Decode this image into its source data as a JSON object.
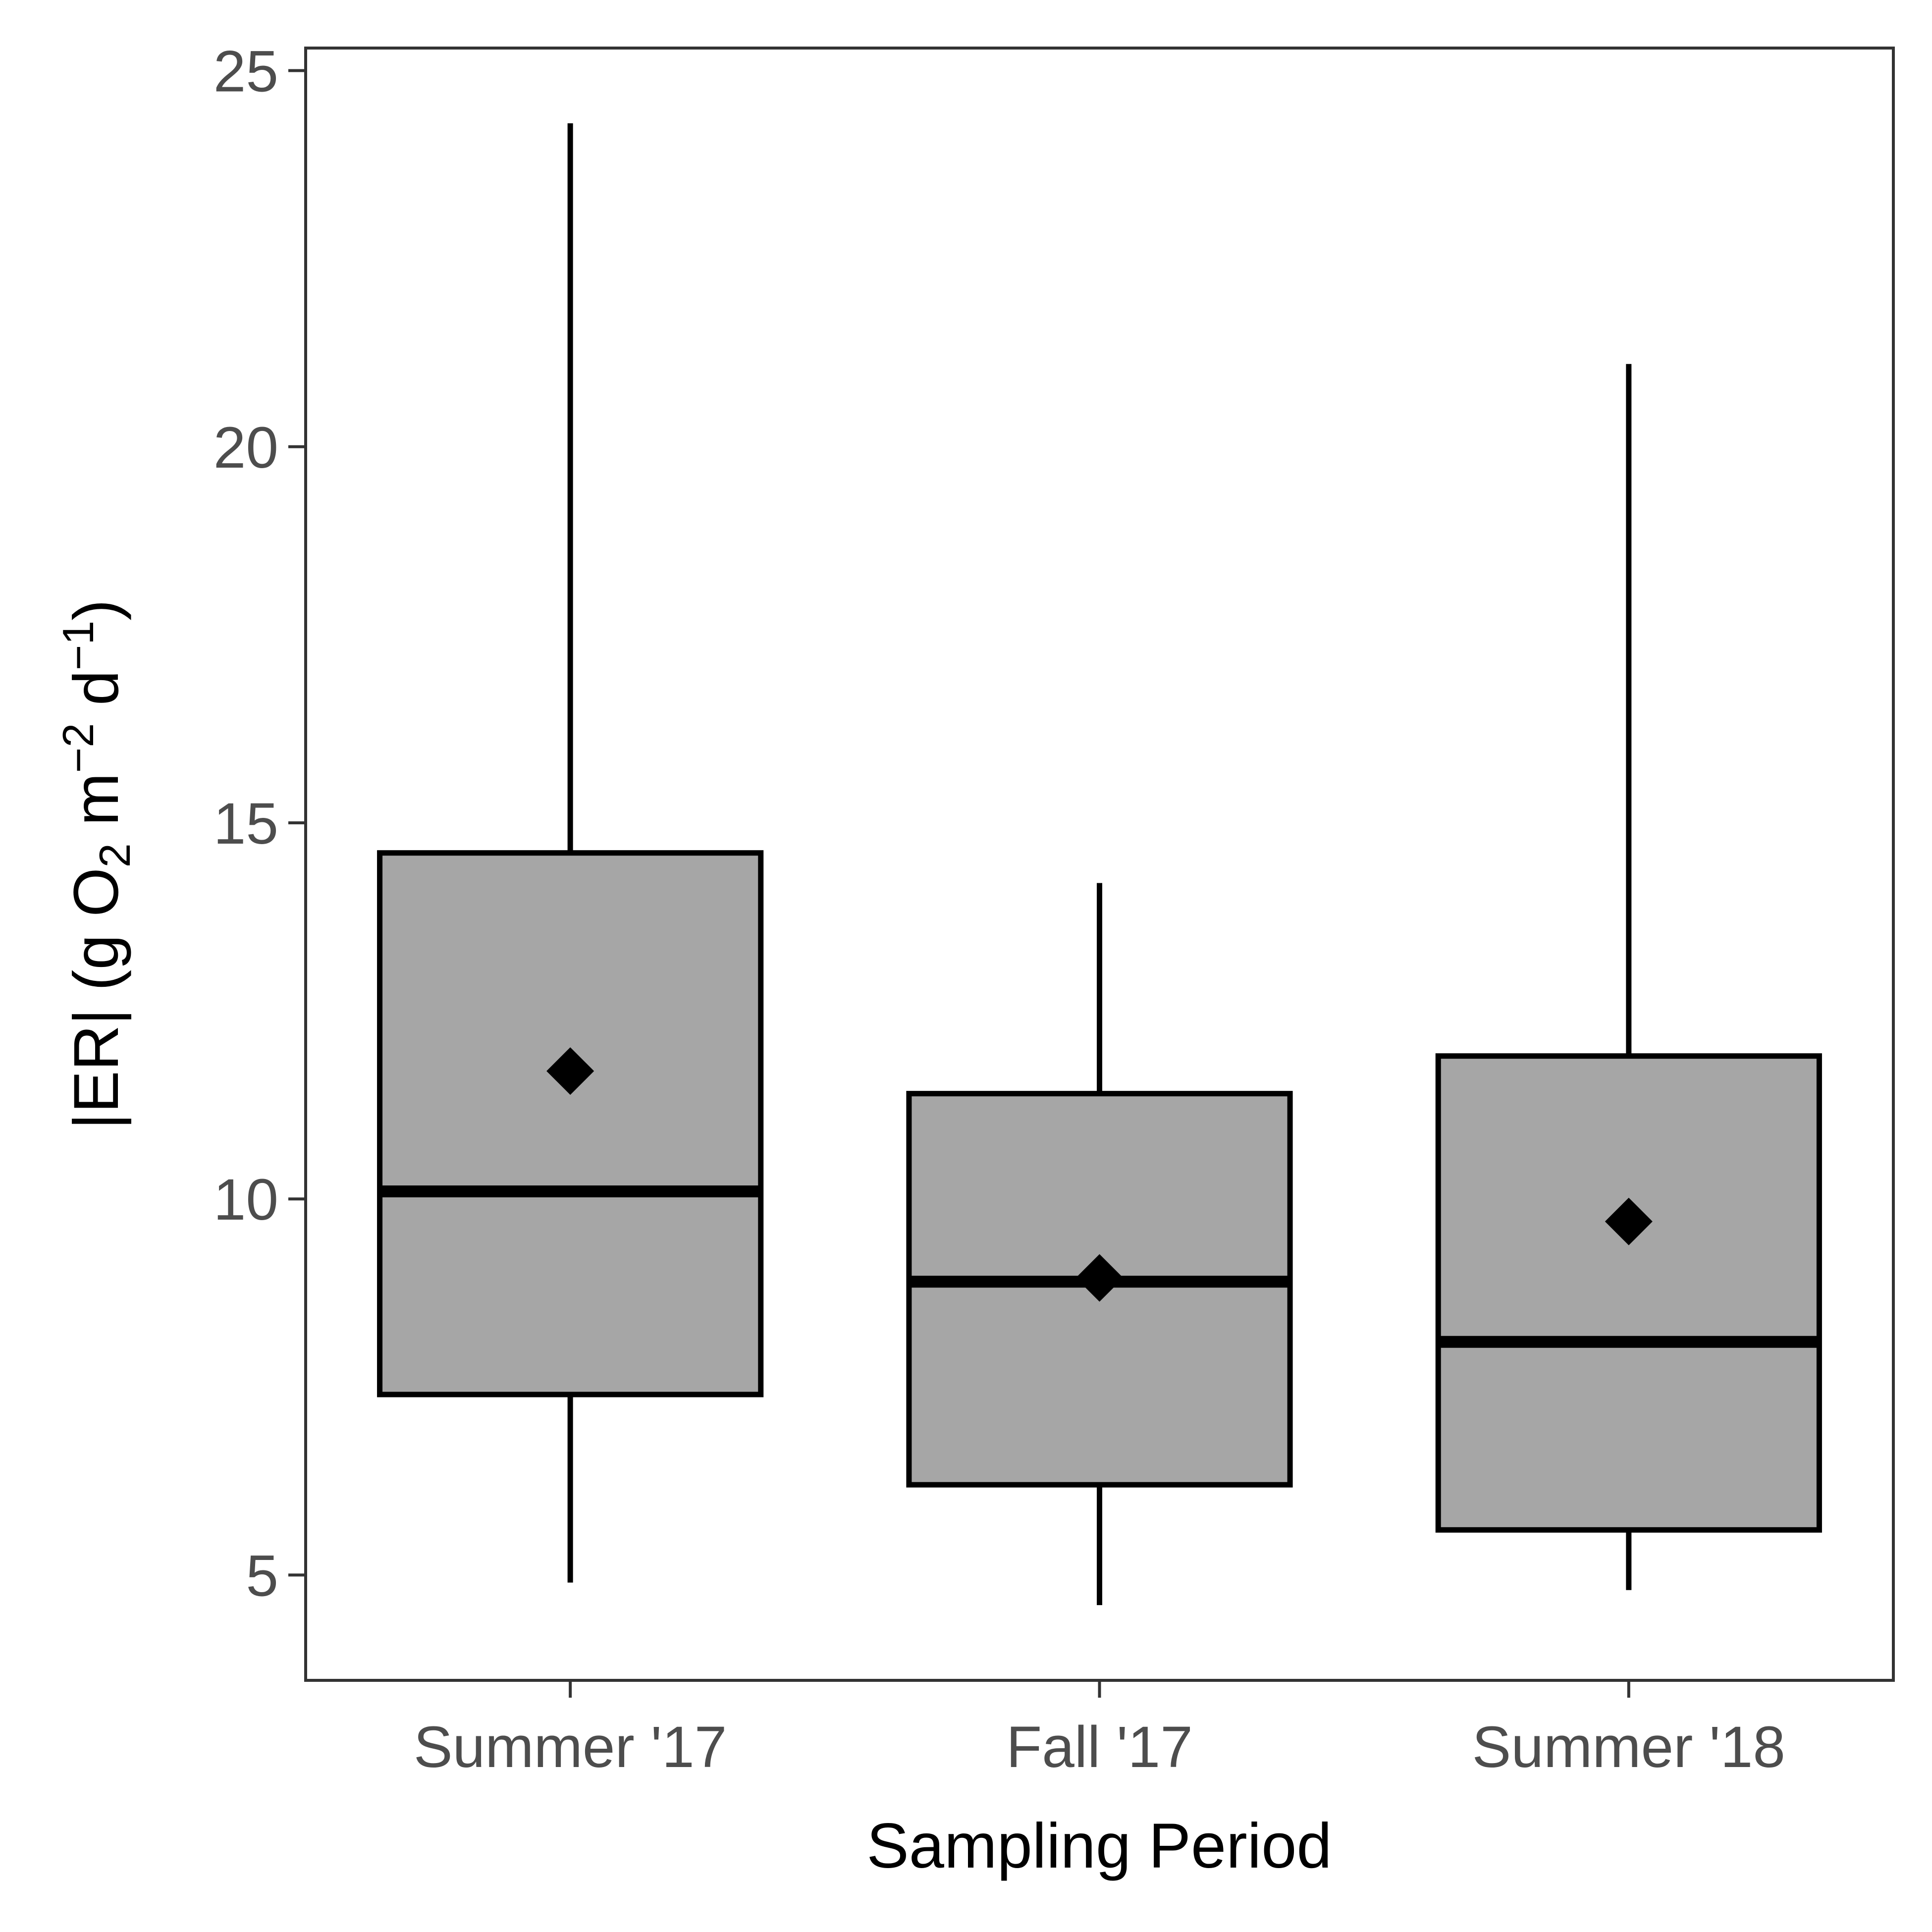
{
  "chart_data": {
    "type": "box",
    "xlabel": "Sampling Period",
    "ylabel": {
      "main": "|ER| (g O",
      "o2_sub": "2",
      "unit_m": " m",
      "m_sup": "−2",
      "unit_d": " d",
      "d_sup": "−1",
      "close": ")"
    },
    "ylim": [
      3.6,
      25.3
    ],
    "yticks": [
      "5",
      "10",
      "15",
      "20",
      "25"
    ],
    "categories": [
      "Summer '17",
      "Fall '17",
      "Summer '18"
    ],
    "boxes": [
      {
        "category": "Summer '17",
        "whisker_low": 4.9,
        "q1": 7.4,
        "median": 10.1,
        "q3": 14.6,
        "whisker_high": 24.3,
        "mean": 11.7
      },
      {
        "category": "Fall '17",
        "whisker_low": 4.6,
        "q1": 6.2,
        "median": 8.9,
        "q3": 11.4,
        "whisker_high": 14.2,
        "mean": 8.95
      },
      {
        "category": "Summer '18",
        "whisker_low": 4.8,
        "q1": 5.6,
        "median": 8.1,
        "q3": 11.9,
        "whisker_high": 21.1,
        "mean": 9.7
      }
    ],
    "colors": {
      "box_fill": "#a6a6a6",
      "line": "#000000",
      "panel_border": "#333333",
      "tick_text": "#4d4d4d"
    },
    "grid": false,
    "legend": "none"
  }
}
